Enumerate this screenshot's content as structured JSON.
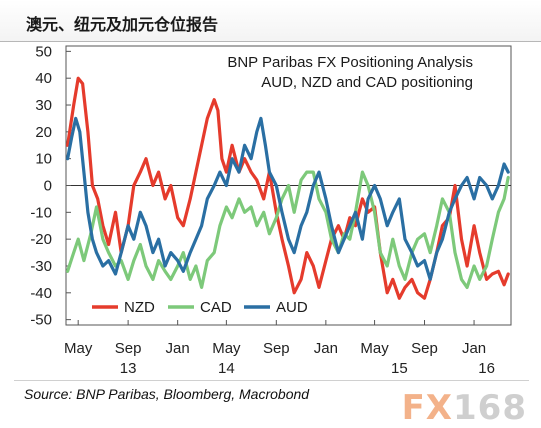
{
  "header": {
    "title": "澳元、纽元及加元仓位报告"
  },
  "source": "Source:  BNP Paribas, Bloomberg, Macrobond",
  "watermark": {
    "fx": "FX",
    "num": "168"
  },
  "chart_data": {
    "type": "line",
    "title": "BNP Paribas FX Positioning Analysis",
    "subtitle": "AUD, NZD and CAD positioning",
    "x_start": "2013-04-01",
    "x_end": "2016-04-01",
    "ylim": [
      -52,
      52
    ],
    "yticks": [
      50,
      40,
      30,
      20,
      10,
      0,
      -10,
      -20,
      -30,
      -40,
      -50
    ],
    "xticks": [
      {
        "date": "2013-05-01",
        "label": "May"
      },
      {
        "date": "2013-09-01",
        "label": "Sep"
      },
      {
        "date": "2014-01-01",
        "label": "Jan"
      },
      {
        "date": "2014-05-01",
        "label": "May"
      },
      {
        "date": "2014-09-01",
        "label": "Sep"
      },
      {
        "date": "2015-01-01",
        "label": "Jan"
      },
      {
        "date": "2015-05-01",
        "label": "May"
      },
      {
        "date": "2015-09-01",
        "label": "Sep"
      },
      {
        "date": "2016-01-01",
        "label": "Jan"
      }
    ],
    "year_labels": [
      {
        "date": "2013-09-01",
        "label": "13"
      },
      {
        "date": "2014-05-01",
        "label": "14"
      },
      {
        "date": "2015-07-01",
        "label": "15"
      },
      {
        "date": "2016-02-01",
        "label": "16"
      }
    ],
    "legend_position": "bottom-left",
    "grid": false,
    "series": [
      {
        "name": "NZD",
        "color": "#e53b2c",
        "points": [
          [
            "2013-04-05",
            15
          ],
          [
            "2013-04-20",
            30
          ],
          [
            "2013-05-01",
            40
          ],
          [
            "2013-05-12",
            38
          ],
          [
            "2013-05-25",
            20
          ],
          [
            "2013-06-05",
            0
          ],
          [
            "2013-06-18",
            -5
          ],
          [
            "2013-07-01",
            -15
          ],
          [
            "2013-07-15",
            -22
          ],
          [
            "2013-08-01",
            -10
          ],
          [
            "2013-08-15",
            -25
          ],
          [
            "2013-09-01",
            -15
          ],
          [
            "2013-09-15",
            0
          ],
          [
            "2013-10-01",
            5
          ],
          [
            "2013-10-15",
            10
          ],
          [
            "2013-11-01",
            0
          ],
          [
            "2013-11-15",
            5
          ],
          [
            "2013-12-01",
            -5
          ],
          [
            "2013-12-15",
            0
          ],
          [
            "2014-01-01",
            -12
          ],
          [
            "2014-01-15",
            -15
          ],
          [
            "2014-02-01",
            -5
          ],
          [
            "2014-02-15",
            5
          ],
          [
            "2014-03-01",
            15
          ],
          [
            "2014-03-15",
            25
          ],
          [
            "2014-04-01",
            32
          ],
          [
            "2014-04-10",
            28
          ],
          [
            "2014-04-20",
            10
          ],
          [
            "2014-05-01",
            5
          ],
          [
            "2014-05-15",
            15
          ],
          [
            "2014-06-01",
            5
          ],
          [
            "2014-06-15",
            10
          ],
          [
            "2014-07-01",
            5
          ],
          [
            "2014-07-15",
            2
          ],
          [
            "2014-08-01",
            -5
          ],
          [
            "2014-08-15",
            5
          ],
          [
            "2014-09-01",
            -10
          ],
          [
            "2014-09-15",
            -20
          ],
          [
            "2014-10-01",
            -30
          ],
          [
            "2014-10-15",
            -40
          ],
          [
            "2014-11-01",
            -35
          ],
          [
            "2014-11-15",
            -25
          ],
          [
            "2014-12-01",
            -30
          ],
          [
            "2014-12-15",
            -38
          ],
          [
            "2015-01-01",
            -28
          ],
          [
            "2015-01-15",
            -20
          ],
          [
            "2015-02-01",
            -15
          ],
          [
            "2015-02-15",
            -20
          ],
          [
            "2015-03-01",
            -12
          ],
          [
            "2015-03-15",
            -15
          ],
          [
            "2015-04-01",
            -5
          ],
          [
            "2015-04-15",
            -10
          ],
          [
            "2015-05-01",
            -8
          ],
          [
            "2015-05-15",
            -25
          ],
          [
            "2015-06-01",
            -40
          ],
          [
            "2015-06-15",
            -35
          ],
          [
            "2015-07-01",
            -42
          ],
          [
            "2015-07-15",
            -38
          ],
          [
            "2015-08-01",
            -35
          ],
          [
            "2015-08-15",
            -40
          ],
          [
            "2015-09-01",
            -42
          ],
          [
            "2015-09-15",
            -35
          ],
          [
            "2015-10-01",
            -25
          ],
          [
            "2015-10-15",
            -15
          ],
          [
            "2015-11-01",
            -12
          ],
          [
            "2015-11-15",
            0
          ],
          [
            "2015-12-01",
            -20
          ],
          [
            "2015-12-15",
            -30
          ],
          [
            "2016-01-01",
            -15
          ],
          [
            "2016-01-15",
            -25
          ],
          [
            "2016-02-01",
            -35
          ],
          [
            "2016-02-15",
            -33
          ],
          [
            "2016-03-01",
            -32
          ],
          [
            "2016-03-15",
            -37
          ],
          [
            "2016-03-25",
            -33
          ]
        ]
      },
      {
        "name": "CAD",
        "color": "#7dc97a",
        "points": [
          [
            "2013-04-05",
            -32
          ],
          [
            "2013-04-20",
            -25
          ],
          [
            "2013-05-01",
            -20
          ],
          [
            "2013-05-15",
            -28
          ],
          [
            "2013-06-01",
            -18
          ],
          [
            "2013-06-15",
            -8
          ],
          [
            "2013-07-01",
            -20
          ],
          [
            "2013-07-15",
            -25
          ],
          [
            "2013-08-01",
            -30
          ],
          [
            "2013-08-15",
            -28
          ],
          [
            "2013-09-01",
            -35
          ],
          [
            "2013-09-15",
            -28
          ],
          [
            "2013-10-01",
            -22
          ],
          [
            "2013-10-15",
            -30
          ],
          [
            "2013-11-01",
            -35
          ],
          [
            "2013-11-15",
            -28
          ],
          [
            "2013-12-01",
            -32
          ],
          [
            "2013-12-15",
            -35
          ],
          [
            "2014-01-01",
            -30
          ],
          [
            "2014-01-15",
            -25
          ],
          [
            "2014-02-01",
            -35
          ],
          [
            "2014-02-15",
            -30
          ],
          [
            "2014-03-01",
            -38
          ],
          [
            "2014-03-15",
            -28
          ],
          [
            "2014-04-01",
            -25
          ],
          [
            "2014-04-15",
            -15
          ],
          [
            "2014-05-01",
            -8
          ],
          [
            "2014-05-15",
            -12
          ],
          [
            "2014-06-01",
            -5
          ],
          [
            "2014-06-15",
            -10
          ],
          [
            "2014-07-01",
            -8
          ],
          [
            "2014-07-15",
            -15
          ],
          [
            "2014-08-01",
            -10
          ],
          [
            "2014-08-15",
            -18
          ],
          [
            "2014-09-01",
            -12
          ],
          [
            "2014-09-15",
            -5
          ],
          [
            "2014-10-01",
            0
          ],
          [
            "2014-10-15",
            -10
          ],
          [
            "2014-11-01",
            2
          ],
          [
            "2014-11-15",
            5
          ],
          [
            "2014-12-01",
            5
          ],
          [
            "2014-12-15",
            -5
          ],
          [
            "2015-01-01",
            -10
          ],
          [
            "2015-01-15",
            -20
          ],
          [
            "2015-02-01",
            -25
          ],
          [
            "2015-02-15",
            -18
          ],
          [
            "2015-03-01",
            -20
          ],
          [
            "2015-03-15",
            -10
          ],
          [
            "2015-04-01",
            5
          ],
          [
            "2015-04-15",
            0
          ],
          [
            "2015-05-01",
            -10
          ],
          [
            "2015-05-15",
            -25
          ],
          [
            "2015-06-01",
            -30
          ],
          [
            "2015-06-15",
            -20
          ],
          [
            "2015-07-01",
            -30
          ],
          [
            "2015-07-15",
            -35
          ],
          [
            "2015-08-01",
            -25
          ],
          [
            "2015-08-15",
            -20
          ],
          [
            "2015-09-01",
            -18
          ],
          [
            "2015-09-15",
            -25
          ],
          [
            "2015-10-01",
            -15
          ],
          [
            "2015-10-15",
            -5
          ],
          [
            "2015-11-01",
            -10
          ],
          [
            "2015-11-15",
            -25
          ],
          [
            "2015-12-01",
            -35
          ],
          [
            "2015-12-15",
            -38
          ],
          [
            "2016-01-01",
            -30
          ],
          [
            "2016-01-15",
            -35
          ],
          [
            "2016-02-01",
            -30
          ],
          [
            "2016-02-15",
            -20
          ],
          [
            "2016-03-01",
            -10
          ],
          [
            "2016-03-15",
            -5
          ],
          [
            "2016-03-25",
            3
          ]
        ]
      },
      {
        "name": "AUD",
        "color": "#2a6fa3",
        "points": [
          [
            "2013-04-05",
            10
          ],
          [
            "2013-04-15",
            18
          ],
          [
            "2013-04-25",
            25
          ],
          [
            "2013-05-05",
            20
          ],
          [
            "2013-05-15",
            5
          ],
          [
            "2013-05-25",
            -10
          ],
          [
            "2013-06-05",
            -20
          ],
          [
            "2013-06-15",
            -25
          ],
          [
            "2013-07-01",
            -30
          ],
          [
            "2013-07-15",
            -28
          ],
          [
            "2013-08-01",
            -33
          ],
          [
            "2013-08-15",
            -25
          ],
          [
            "2013-09-01",
            -15
          ],
          [
            "2013-09-15",
            -20
          ],
          [
            "2013-10-01",
            -10
          ],
          [
            "2013-10-15",
            -15
          ],
          [
            "2013-11-01",
            -25
          ],
          [
            "2013-11-15",
            -20
          ],
          [
            "2013-12-01",
            -30
          ],
          [
            "2013-12-15",
            -25
          ],
          [
            "2014-01-01",
            -28
          ],
          [
            "2014-01-15",
            -32
          ],
          [
            "2014-02-01",
            -25
          ],
          [
            "2014-02-15",
            -20
          ],
          [
            "2014-03-01",
            -15
          ],
          [
            "2014-03-15",
            -5
          ],
          [
            "2014-04-01",
            0
          ],
          [
            "2014-04-15",
            5
          ],
          [
            "2014-05-01",
            0
          ],
          [
            "2014-05-15",
            10
          ],
          [
            "2014-06-01",
            5
          ],
          [
            "2014-06-15",
            15
          ],
          [
            "2014-07-01",
            10
          ],
          [
            "2014-07-15",
            20
          ],
          [
            "2014-07-25",
            25
          ],
          [
            "2014-08-05",
            15
          ],
          [
            "2014-08-15",
            5
          ],
          [
            "2014-09-01",
            0
          ],
          [
            "2014-09-15",
            -10
          ],
          [
            "2014-10-01",
            -20
          ],
          [
            "2014-10-15",
            -25
          ],
          [
            "2014-11-01",
            -15
          ],
          [
            "2014-11-15",
            -10
          ],
          [
            "2014-12-01",
            0
          ],
          [
            "2014-12-15",
            5
          ],
          [
            "2015-01-01",
            -5
          ],
          [
            "2015-01-15",
            -15
          ],
          [
            "2015-02-01",
            -25
          ],
          [
            "2015-02-15",
            -20
          ],
          [
            "2015-03-01",
            -15
          ],
          [
            "2015-03-15",
            -10
          ],
          [
            "2015-04-01",
            -20
          ],
          [
            "2015-04-15",
            -5
          ],
          [
            "2015-05-01",
            0
          ],
          [
            "2015-05-15",
            -5
          ],
          [
            "2015-06-01",
            -15
          ],
          [
            "2015-06-15",
            -10
          ],
          [
            "2015-07-01",
            -5
          ],
          [
            "2015-07-15",
            -20
          ],
          [
            "2015-08-01",
            -25
          ],
          [
            "2015-08-15",
            -30
          ],
          [
            "2015-09-01",
            -28
          ],
          [
            "2015-09-15",
            -35
          ],
          [
            "2015-10-01",
            -25
          ],
          [
            "2015-10-15",
            -20
          ],
          [
            "2015-11-01",
            -10
          ],
          [
            "2015-11-15",
            -5
          ],
          [
            "2015-12-01",
            0
          ],
          [
            "2015-12-15",
            3
          ],
          [
            "2016-01-01",
            -5
          ],
          [
            "2016-01-15",
            3
          ],
          [
            "2016-02-01",
            0
          ],
          [
            "2016-02-15",
            -5
          ],
          [
            "2016-03-01",
            0
          ],
          [
            "2016-03-15",
            8
          ],
          [
            "2016-03-25",
            5
          ]
        ]
      }
    ]
  }
}
